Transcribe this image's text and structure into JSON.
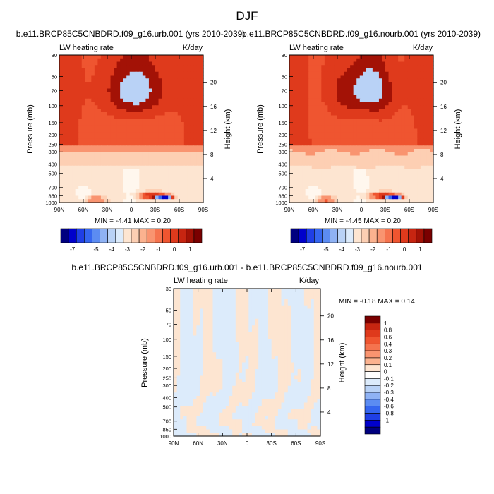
{
  "page_title": "DJF",
  "colors": {
    "neg": [
      "#00007f",
      "#0000cc",
      "#1f3fe6",
      "#3566f0",
      "#5c8cf2",
      "#8fb2f4",
      "#b9d2f6",
      "#dcebfb"
    ],
    "pos": [
      "#fde5d1",
      "#fdcfb3",
      "#fbb28f",
      "#f99470",
      "#f5734e",
      "#ef5530",
      "#df3a1c",
      "#c72511",
      "#a31206",
      "#7a0000"
    ],
    "frame": "#000000"
  },
  "chart_data": [
    {
      "id": "urb",
      "type": "heatmap",
      "title": "b.e11.BRCP85C5CNBDRD.f09_g16.urb.001 (yrs 2010-2039)",
      "left_label": "LW heating rate",
      "right_label": "K/day",
      "ylabel": "Pressure (mb)",
      "ylabel_right": "Height (km)",
      "x_ticks": [
        "90N",
        "60N",
        "30N",
        "0",
        "30S",
        "60S",
        "90S"
      ],
      "x_range": [
        90,
        -90
      ],
      "y_ticks": [
        30,
        50,
        70,
        100,
        150,
        200,
        250,
        300,
        400,
        500,
        700,
        850,
        1000
      ],
      "y_range": [
        30,
        1000
      ],
      "y_right_ticks": [
        4,
        8,
        12,
        16,
        20
      ],
      "stats_text": "MIN =  -4.41  MAX =   0.20",
      "min": -4.41,
      "max": 0.2,
      "colorbar_labels": [
        "-7",
        "-5",
        "-4",
        "-3",
        "-2",
        "-1",
        "0",
        "1"
      ]
    },
    {
      "id": "nourb",
      "type": "heatmap",
      "title": "b.e11.BRCP85C5CNBDRD.f09_g16.nourb.001 (yrs 2010-2039)",
      "left_label": "LW heating rate",
      "right_label": "K/day",
      "ylabel": "Pressure (mb)",
      "ylabel_right": "Height (km)",
      "x_ticks": [
        "90N",
        "60N",
        "30N",
        "0",
        "30S",
        "60S",
        "90S"
      ],
      "x_range": [
        90,
        -90
      ],
      "y_ticks": [
        30,
        50,
        70,
        100,
        150,
        200,
        250,
        300,
        400,
        500,
        700,
        850,
        1000
      ],
      "y_range": [
        30,
        1000
      ],
      "y_right_ticks": [
        4,
        8,
        12,
        16,
        20
      ],
      "stats_text": "MIN =  -4.45  MAX =   0.20",
      "min": -4.45,
      "max": 0.2,
      "colorbar_labels": [
        "-7",
        "-5",
        "-4",
        "-3",
        "-2",
        "-1",
        "0",
        "1"
      ]
    },
    {
      "id": "diff",
      "type": "heatmap",
      "title": "b.e11.BRCP85C5CNBDRD.f09_g16.urb.001 - b.e11.BRCP85C5CNBDRD.f09_g16.nourb.001",
      "left_label": "LW heating rate",
      "right_label": "K/day",
      "ylabel": "Pressure (mb)",
      "ylabel_right": "Height (km)",
      "x_ticks": [
        "90N",
        "60N",
        "30N",
        "0",
        "30S",
        "60S",
        "90S"
      ],
      "x_range": [
        90,
        -90
      ],
      "y_ticks": [
        30,
        50,
        70,
        100,
        150,
        200,
        250,
        300,
        400,
        500,
        700,
        850,
        1000
      ],
      "y_range": [
        30,
        1000
      ],
      "y_right_ticks": [
        4,
        8,
        12,
        16,
        20
      ],
      "stats_text": "MIN =  -0.18  MAX =   0.14",
      "min": -0.18,
      "max": 0.14,
      "colorbar_labels": [
        "1",
        "0.8",
        "0.6",
        "0.4",
        "0.3",
        "0.2",
        "0.1",
        "0",
        "-0.1",
        "-0.2",
        "-0.3",
        "-0.4",
        "-0.6",
        "-0.8",
        "-1"
      ]
    }
  ]
}
